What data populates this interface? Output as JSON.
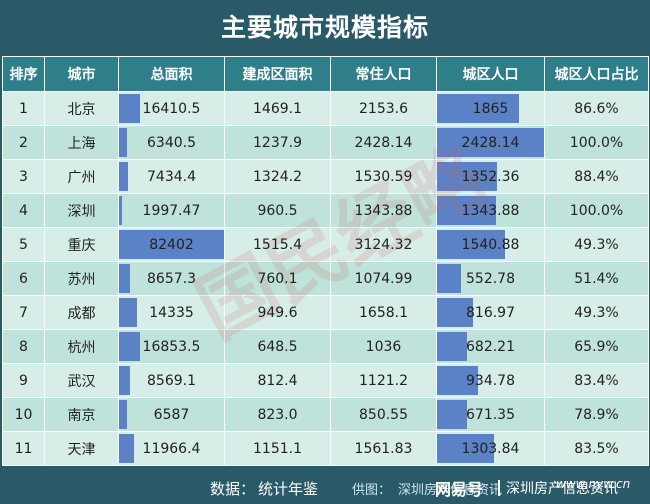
{
  "title": "主要城市规模指标",
  "columns": [
    "排序",
    "城市",
    "总面积",
    "建成区面积",
    "常住人口",
    "城区人口",
    "城区人口占比"
  ],
  "rows": [
    {
      "rank": "1",
      "city": "北京",
      "total_area": "16410.5",
      "built_area": "1469.1",
      "resident_pop": "2153.6",
      "urban_pop": "1865",
      "urban_ratio": "86.6%"
    },
    {
      "rank": "2",
      "city": "上海",
      "total_area": "6340.5",
      "built_area": "1237.9",
      "resident_pop": "2428.14",
      "urban_pop": "2428.14",
      "urban_ratio": "100.0%"
    },
    {
      "rank": "3",
      "city": "广州",
      "total_area": "7434.4",
      "built_area": "1324.2",
      "resident_pop": "1530.59",
      "urban_pop": "1352.36",
      "urban_ratio": "88.4%"
    },
    {
      "rank": "4",
      "city": "深圳",
      "total_area": "1997.47",
      "built_area": "960.5",
      "resident_pop": "1343.88",
      "urban_pop": "1343.88",
      "urban_ratio": "100.0%"
    },
    {
      "rank": "5",
      "city": "重庆",
      "total_area": "82402",
      "built_area": "1515.4",
      "resident_pop": "3124.32",
      "urban_pop": "1540.88",
      "urban_ratio": "49.3%"
    },
    {
      "rank": "6",
      "city": "苏州",
      "total_area": "8657.3",
      "built_area": "760.1",
      "resident_pop": "1074.99",
      "urban_pop": "552.78",
      "urban_ratio": "51.4%"
    },
    {
      "rank": "7",
      "city": "成都",
      "total_area": "14335",
      "built_area": "949.6",
      "resident_pop": "1658.1",
      "urban_pop": "816.97",
      "urban_ratio": "49.3%"
    },
    {
      "rank": "8",
      "city": "杭州",
      "total_area": "16853.5",
      "built_area": "648.5",
      "resident_pop": "1036",
      "urban_pop": "682.21",
      "urban_ratio": "65.9%"
    },
    {
      "rank": "9",
      "city": "武汉",
      "total_area": "8569.1",
      "built_area": "812.4",
      "resident_pop": "1121.2",
      "urban_pop": "934.78",
      "urban_ratio": "83.4%"
    },
    {
      "rank": "10",
      "city": "南京",
      "total_area": "6587",
      "built_area": "823.0",
      "resident_pop": "850.55",
      "urban_pop": "671.35",
      "urban_ratio": "78.9%"
    },
    {
      "rank": "11",
      "city": "天津",
      "total_area": "11966.4",
      "built_area": "1151.1",
      "resident_pop": "1561.83",
      "urban_pop": "1303.84",
      "urban_ratio": "83.5%"
    }
  ],
  "data_bars": {
    "color": "#5b82c6",
    "columns": [
      "total_area",
      "urban_pop"
    ]
  },
  "footer": {
    "source_label": "数据：",
    "source_value": "统计年鉴",
    "credit_label": "供图：",
    "credit_value": "深圳房产信息资讯"
  },
  "watermark": {
    "platform": "网易号",
    "account": "深圳房产信息资讯",
    "url": "www.nyw.cn",
    "stamp_text": "国民经略"
  },
  "colors": {
    "background": "#2a5a68",
    "header": "#2f7f8a",
    "row_light": "#d6ede8",
    "row_dark": "#bfe3da"
  }
}
